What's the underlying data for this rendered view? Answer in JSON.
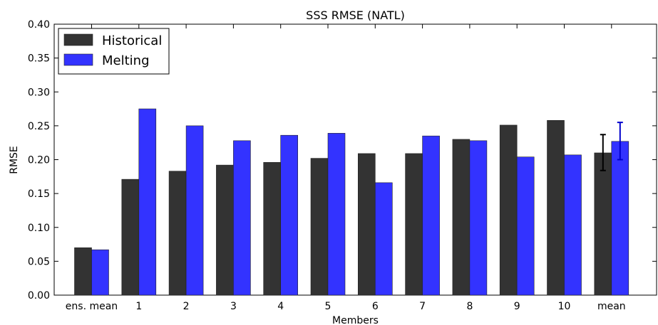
{
  "chart_data": {
    "type": "bar",
    "title": "SSS RMSE (NATL)",
    "xlabel": "Members",
    "ylabel": "RMSE",
    "ylim": [
      0,
      0.4
    ],
    "yticks": [
      "0.00",
      "0.05",
      "0.10",
      "0.15",
      "0.20",
      "0.25",
      "0.30",
      "0.35",
      "0.40"
    ],
    "categories": [
      "ens. mean",
      "1",
      "2",
      "3",
      "4",
      "5",
      "6",
      "7",
      "8",
      "9",
      "10",
      "mean"
    ],
    "legend_position": "top-left",
    "grid": false,
    "series": [
      {
        "name": "Historical",
        "color": "#333333",
        "values": [
          0.07,
          0.171,
          0.183,
          0.192,
          0.196,
          0.202,
          0.209,
          0.209,
          0.23,
          0.251,
          0.258,
          0.21
        ],
        "error_bar": {
          "category": "mean",
          "low": 0.184,
          "high": 0.237,
          "color": "#000000"
        }
      },
      {
        "name": "Melting",
        "color": "#3333ff",
        "values": [
          0.067,
          0.275,
          0.25,
          0.228,
          0.236,
          0.239,
          0.166,
          0.235,
          0.228,
          0.204,
          0.207,
          0.227
        ],
        "error_bar": {
          "category": "mean",
          "low": 0.2,
          "high": 0.255,
          "color": "#0000cc"
        }
      }
    ]
  }
}
